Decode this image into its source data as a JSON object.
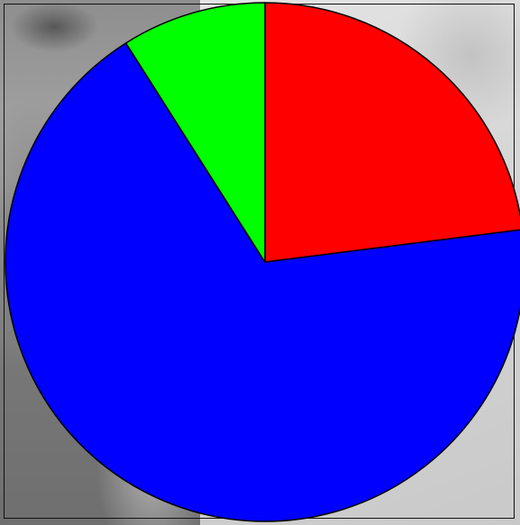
{
  "chart_data": {
    "type": "pie",
    "title": "",
    "slices": [
      {
        "value": 23,
        "color": "#ff0000"
      },
      {
        "value": 68,
        "color": "#0000ff"
      },
      {
        "value": 9,
        "color": "#00ff00"
      }
    ],
    "start": "top",
    "direction": "clockwise",
    "legend": "none"
  }
}
